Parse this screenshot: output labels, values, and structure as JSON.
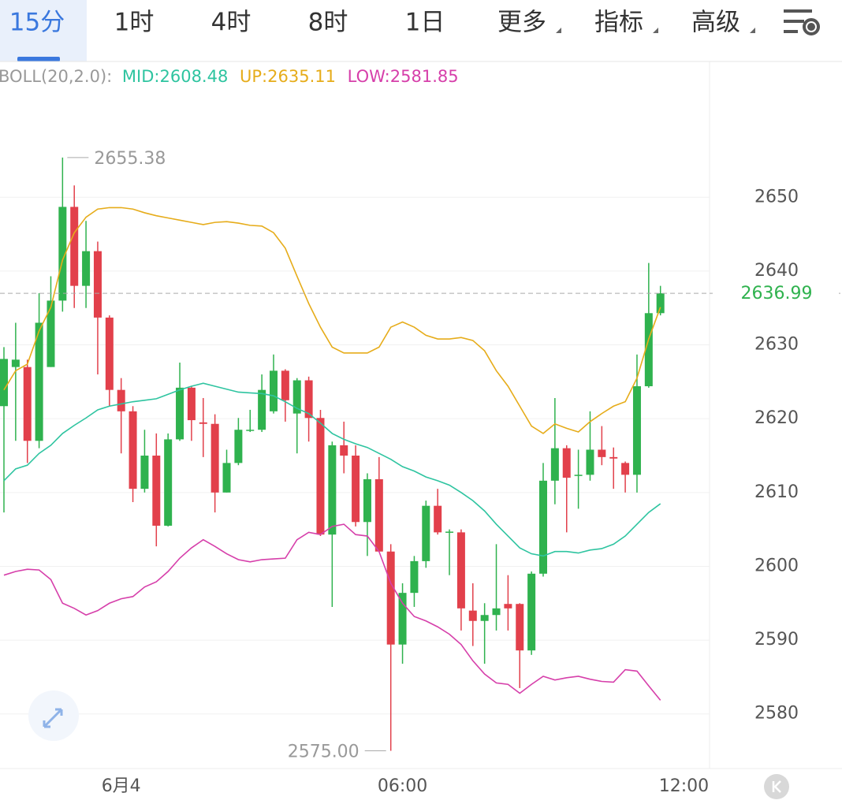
{
  "tabs": [
    "15分",
    "1时",
    "4时",
    "8时",
    "1日",
    "更多",
    "指标",
    "高级"
  ],
  "chart_data": {
    "type": "candlestick",
    "indicator": "BOLL(20,2.0):",
    "open": [
      2621.7,
      2627,
      2627,
      2617,
      2627,
      2636,
      2648.7,
      2638,
      2642.7,
      2633.7,
      2623.9,
      2621,
      2610.5,
      2615,
      2605.5,
      2617.2,
      2624.2,
      2619.5,
      2619.3,
      2610,
      2614,
      2618.4,
      2618.5,
      2621,
      2626.5,
      2620.7,
      2625.2,
      2620.1,
      2604.3,
      2616.4,
      2615,
      2606,
      2611.8,
      2602,
      2589.4,
      2596.4,
      2600.7,
      2608.2,
      2604.6,
      2604.6,
      2594,
      2592.6,
      2593.4,
      2594.9,
      2594.9,
      2588.6,
      2599,
      2611.6,
      2616,
      2612.3,
      2612.4,
      2615.8,
      2614.8,
      2614,
      2612.4,
      2624.4,
      2634.3
    ],
    "high": [
      2629.7,
      2633,
      2628,
      2637,
      2639.3,
      2655.38,
      2651.6,
      2646.8,
      2644,
      2634,
      2625.5,
      2621.7,
      2618.5,
      2618,
      2618,
      2627.6,
      2624.4,
      2622.8,
      2620.6,
      2615.8,
      2620.1,
      2621.2,
      2626,
      2628.7,
      2626.7,
      2625.5,
      2625.7,
      2621.2,
      2616.9,
      2619.6,
      2616.4,
      2612.6,
      2614.8,
      2603,
      2597.7,
      2601.4,
      2608.9,
      2610.5,
      2605,
      2605,
      2597.7,
      2595,
      2603,
      2598.8,
      2595,
      2599.3,
      2614,
      2622.8,
      2616.4,
      2615.8,
      2621,
      2619,
      2616.1,
      2614.2,
      2628.7,
      2641.1,
      2638
    ],
    "low": [
      2607.3,
      2617,
      2614,
      2616,
      2627,
      2634.5,
      2635,
      2635,
      2626,
      2621.7,
      2615.3,
      2608.7,
      2610,
      2602.7,
      2605.4,
      2617,
      2617,
      2614.8,
      2607.3,
      2610,
      2613.7,
      2618.2,
      2618.2,
      2620.7,
      2619.6,
      2615.3,
      2616.9,
      2604.1,
      2594.5,
      2612.6,
      2605.4,
      2601.4,
      2602,
      2575,
      2586.8,
      2594.5,
      2599.8,
      2604.3,
      2598.8,
      2591.3,
      2589.2,
      2586.8,
      2591.3,
      2591.3,
      2583.5,
      2588,
      2598.6,
      2608.4,
      2604.6,
      2607.8,
      2611.6,
      2613.7,
      2610.5,
      2610,
      2610,
      2624.2,
      2634
    ],
    "close": [
      2628.1,
      2628,
      2617,
      2633,
      2636,
      2648.7,
      2638,
      2642.7,
      2633.7,
      2623.9,
      2621,
      2610.5,
      2615,
      2605.5,
      2617.2,
      2624.2,
      2619.8,
      2619.3,
      2610,
      2614,
      2618.5,
      2618.5,
      2623.9,
      2626.5,
      2622.5,
      2625.2,
      2620.1,
      2604.3,
      2616.4,
      2615,
      2606,
      2611.8,
      2602,
      2589.4,
      2596.4,
      2600.7,
      2608.2,
      2604.6,
      2604.7,
      2594.3,
      2592.6,
      2593.4,
      2594.3,
      2594.3,
      2588.6,
      2599,
      2611.6,
      2616,
      2612,
      2612.4,
      2615.8,
      2614.8,
      2614.6,
      2612.4,
      2624.4,
      2634.3,
      2636.99
    ],
    "up_color": "#2fb24e",
    "down_color": "#e2404b",
    "max_label": "2655.38",
    "min_label": "2575.00",
    "series": [
      {
        "name": "MID:",
        "color": "#2ec4a0",
        "values": [
          2611.6,
          2613.2,
          2613.7,
          2615.3,
          2616.4,
          2618,
          2619.1,
          2620.1,
          2621.2,
          2621.7,
          2622,
          2622.3,
          2622.5,
          2622.7,
          2623.3,
          2623.9,
          2624.4,
          2624.8,
          2624.4,
          2624,
          2623.6,
          2623.5,
          2623.4,
          2623.1,
          2622.3,
          2621.4,
          2620.7,
          2619.4,
          2618,
          2617.2,
          2616.6,
          2616.1,
          2615.3,
          2614.5,
          2613.5,
          2612.9,
          2612.1,
          2611.6,
          2611,
          2610,
          2608.9,
          2607.5,
          2605.7,
          2604.1,
          2602.5,
          2601.7,
          2601.4,
          2602,
          2602,
          2601.8,
          2602.2,
          2602.4,
          2603,
          2604.1,
          2605.7,
          2607.3,
          2608.48
        ]
      },
      {
        "name": "UP:",
        "color": "#e6ac1a",
        "values": [
          2623.9,
          2626.5,
          2627.4,
          2631.9,
          2635.1,
          2641.5,
          2645.2,
          2647.3,
          2648.4,
          2648.6,
          2648.6,
          2648.4,
          2647.9,
          2647.5,
          2647.2,
          2646.9,
          2646.6,
          2646.3,
          2646.6,
          2646.7,
          2646.5,
          2646.2,
          2646.1,
          2645.2,
          2643.1,
          2639.3,
          2635.6,
          2632.4,
          2629.7,
          2628.9,
          2628.9,
          2628.9,
          2629.7,
          2632.4,
          2633.1,
          2632.4,
          2631.3,
          2630.8,
          2630.8,
          2631,
          2630.6,
          2629.2,
          2626.5,
          2624.4,
          2621.7,
          2619,
          2618,
          2619.3,
          2618.7,
          2618.2,
          2619.6,
          2620.7,
          2621.7,
          2622.3,
          2625.5,
          2630.8,
          2635.11
        ]
      },
      {
        "name": "LOW:",
        "color": "#d63faa",
        "values": [
          2598.8,
          2599.3,
          2599.6,
          2599.5,
          2598.2,
          2595,
          2594.3,
          2593.4,
          2594,
          2595,
          2595.6,
          2595.9,
          2597.2,
          2597.9,
          2599.3,
          2601.1,
          2602.5,
          2603.6,
          2602.7,
          2601.7,
          2600.9,
          2600.6,
          2600.9,
          2601,
          2601.1,
          2603.6,
          2604.6,
          2604.3,
          2605.4,
          2605.7,
          2604.3,
          2604.1,
          2602,
          2597.7,
          2595,
          2593.2,
          2592.6,
          2591.8,
          2590.8,
          2589.4,
          2587.2,
          2585.4,
          2584.2,
          2584,
          2582.8,
          2584,
          2585.1,
          2584.6,
          2584.9,
          2585.1,
          2584.7,
          2584.4,
          2584.3,
          2586,
          2585.8,
          2583.8,
          2581.85
        ]
      }
    ],
    "xlim": [
      -0.336,
      60.19
    ],
    "xticks": [
      {
        "value": 10,
        "label": "6月4"
      },
      {
        "value": 34,
        "label": "06:00"
      },
      {
        "value": 58,
        "label": "12:00"
      }
    ],
    "ylim": [
      2572.6,
      2668.4
    ],
    "yticks": [
      2580,
      2590,
      2600,
      2610,
      2620,
      2630,
      2640,
      2650
    ],
    "grid": true
  }
}
